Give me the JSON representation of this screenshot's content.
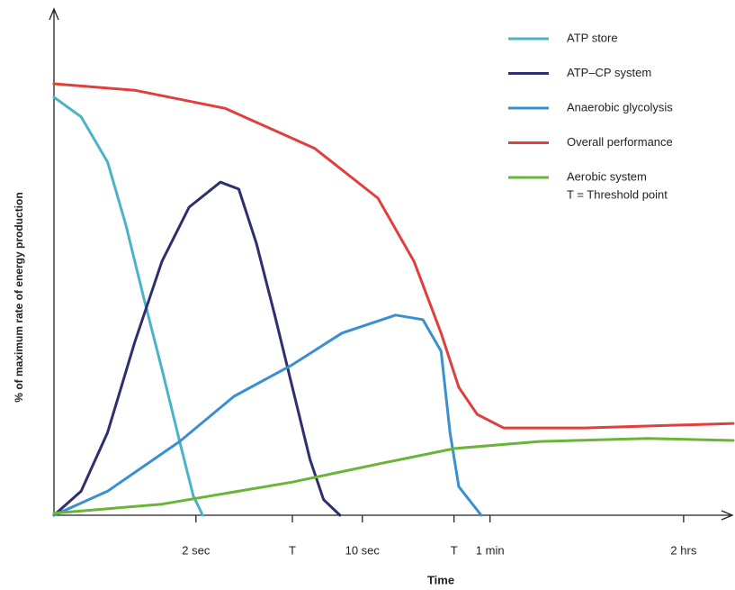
{
  "chart_data": {
    "type": "line",
    "y_label": "% of maximum rate of energy production",
    "x_label": "Time",
    "xlim": [
      0,
      100
    ],
    "ylim": [
      0,
      100
    ],
    "xticks": [
      {
        "value": 20.9,
        "label": "2 sec"
      },
      {
        "value": 35.1,
        "label": "T"
      },
      {
        "value": 45.4,
        "label": "10 sec"
      },
      {
        "value": 58.9,
        "label": "T"
      },
      {
        "value": 64.2,
        "label": "1 min"
      },
      {
        "value": 92.7,
        "label": "2 hrs"
      }
    ],
    "note": "T = Threshold point",
    "series": [
      {
        "name": "ATP store",
        "color": "#4bb3c8",
        "x": [
          0,
          4.0,
          7.9,
          10.6,
          13.2,
          15.9,
          18.5,
          20.5,
          21.9
        ],
        "values": [
          83.3,
          79.4,
          70.4,
          57.8,
          43.4,
          29.1,
          14.7,
          3.9,
          0
        ]
      },
      {
        "name": "ATP–CP system",
        "color": "#2e2f6e",
        "x": [
          0,
          4.0,
          7.9,
          11.9,
          15.9,
          19.9,
          24.5,
          27.2,
          29.8,
          32.5,
          35.1,
          37.7,
          39.7,
          42.1
        ],
        "values": [
          0,
          4.8,
          16.5,
          34.5,
          50.6,
          61.4,
          66.4,
          65.0,
          54.2,
          39.9,
          25.5,
          11.1,
          3.1,
          0
        ]
      },
      {
        "name": "Anaerobic glycolysis",
        "color": "#3a8fd0",
        "x": [
          0,
          7.9,
          18.5,
          26.5,
          35.1,
          42.4,
          50.3,
          54.3,
          57.0,
          58.3,
          59.6,
          62.9
        ],
        "values": [
          0,
          4.8,
          14.7,
          23.7,
          30.0,
          36.3,
          39.9,
          39.0,
          32.7,
          16.5,
          5.7,
          0
        ]
      },
      {
        "name": "Overall performance",
        "color": "#e0403d",
        "x": [
          0,
          11.9,
          25.2,
          38.4,
          47.7,
          53.0,
          57.0,
          59.6,
          62.3,
          66.2,
          78.1,
          100
        ],
        "values": [
          86.0,
          84.7,
          81.1,
          73.1,
          63.2,
          50.6,
          36.3,
          25.5,
          20.1,
          17.4,
          17.4,
          18.3
        ]
      },
      {
        "name": "Aerobic system",
        "color": "#6ab43a",
        "x": [
          0,
          15.9,
          35.1,
          47.7,
          59.0,
          71.5,
          87.4,
          100
        ],
        "values": [
          0.4,
          2.2,
          6.6,
          10.2,
          13.3,
          14.7,
          15.3,
          14.9
        ]
      }
    ]
  }
}
